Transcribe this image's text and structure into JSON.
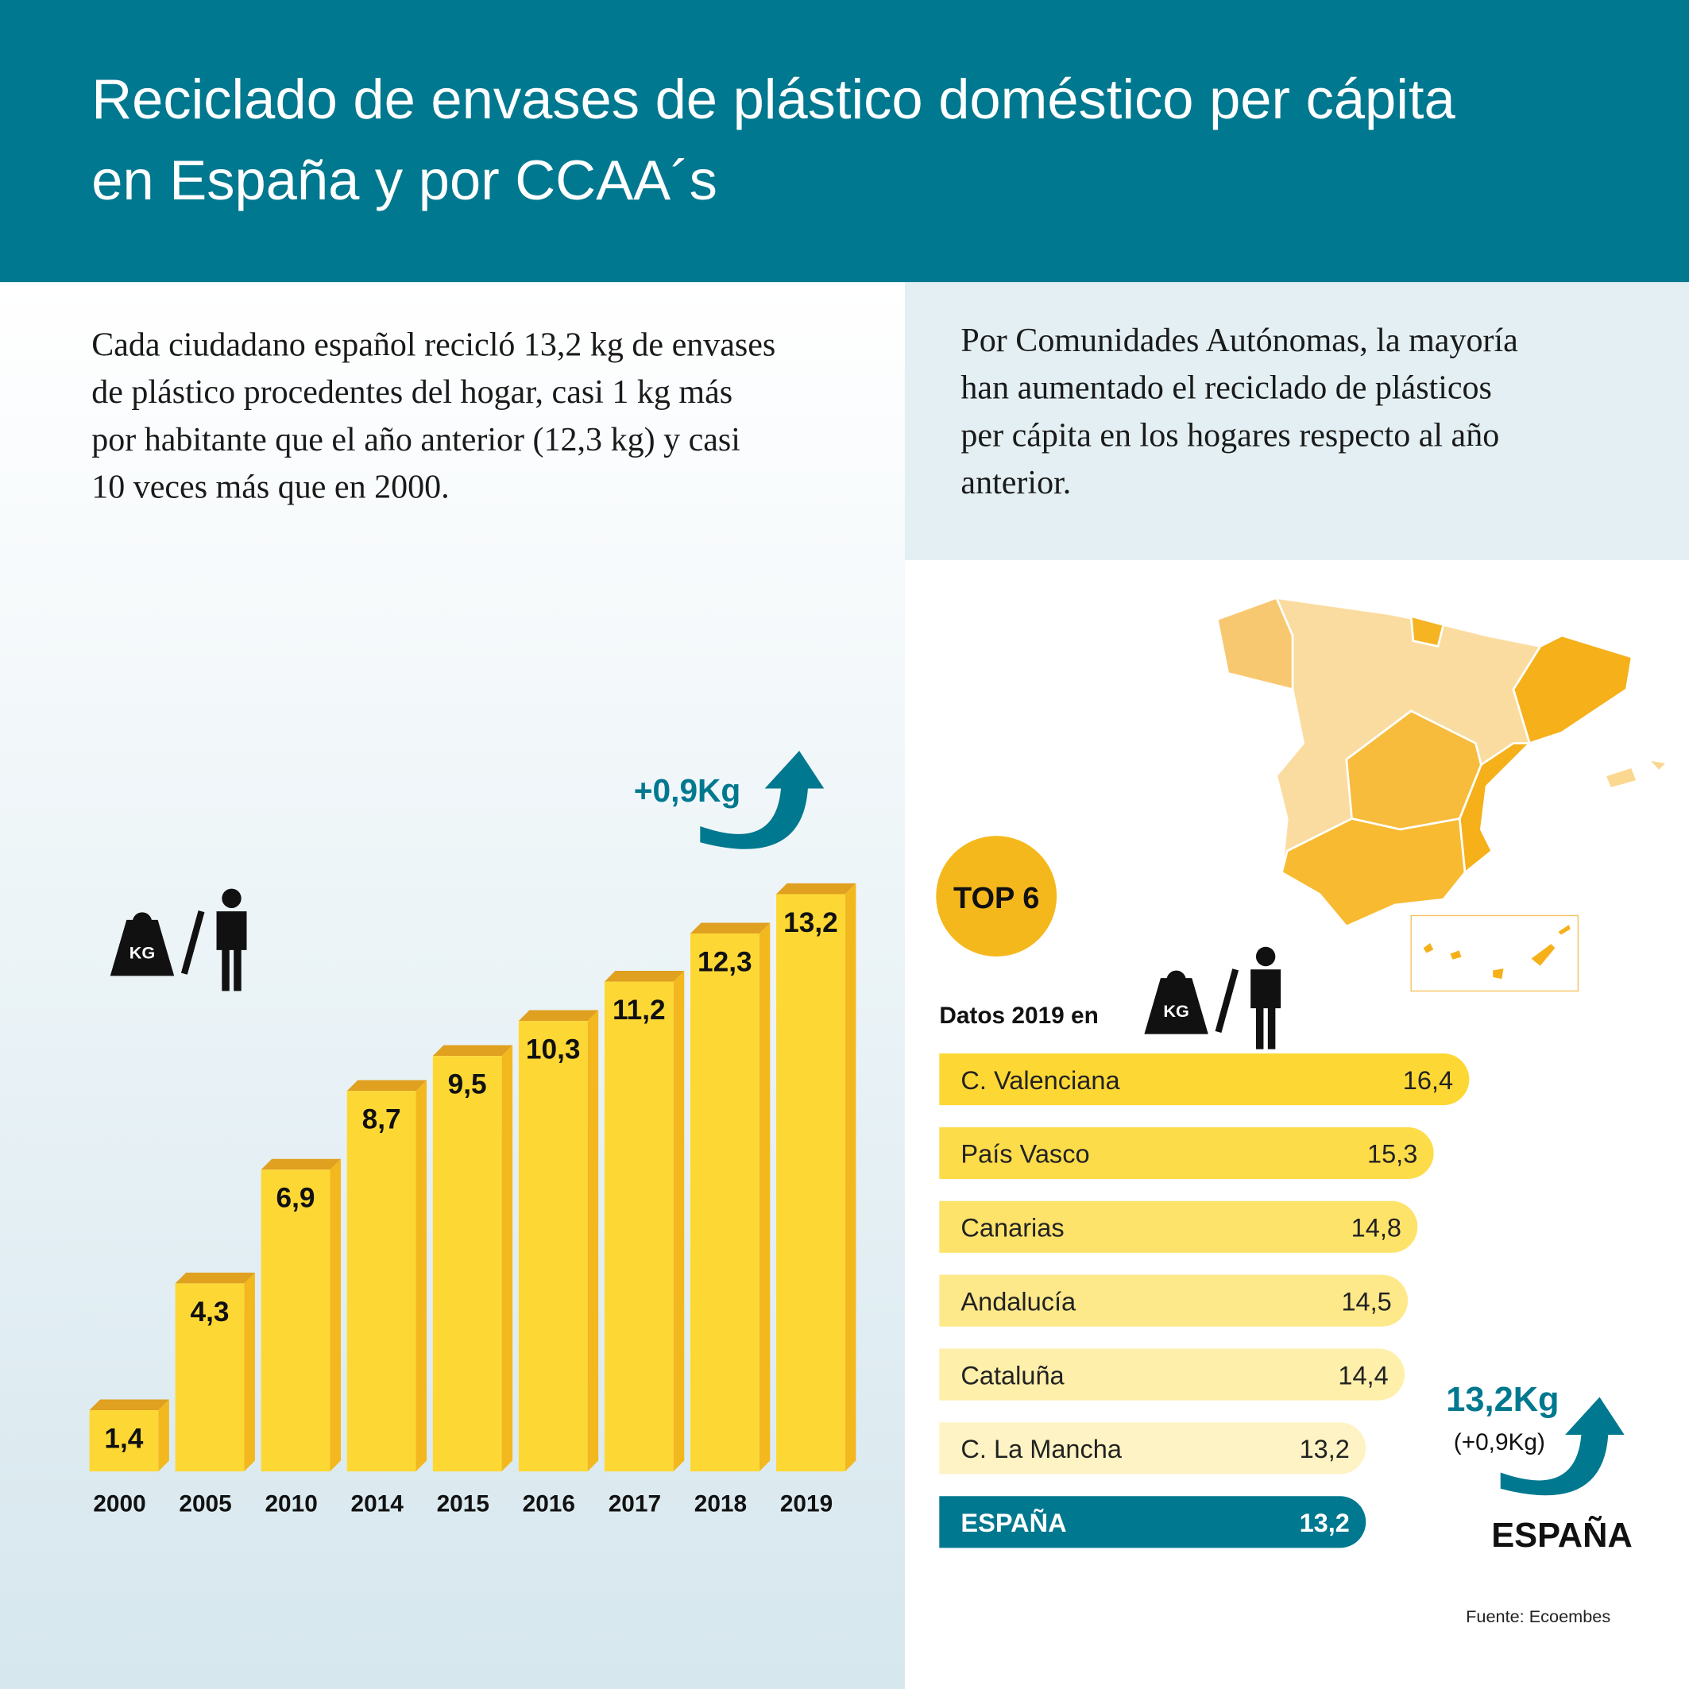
{
  "title": [
    "Reciclado de envases de plástico doméstico per cápita",
    "en España y por CCAA´s"
  ],
  "intro_left": [
    "Cada ciudadano español recicló 13,2 kg de envases",
    "de plástico procedentes del hogar,  casi 1 kg más",
    "por habitante que el año anterior (12,3 kg) y casi",
    "10  veces más que en 2000."
  ],
  "intro_right": [
    "Por Comunidades Autónomas, la mayoría",
    "han aumentado el reciclado de plásticos",
    "per cápita en los hogares respecto al año",
    "anterior."
  ],
  "icon_unit": "KG",
  "chart_data": [
    {
      "type": "bar",
      "annotation": "+0,9Kg",
      "color": "#fdd835",
      "categories": [
        "2000",
        "2005",
        "2010",
        "2014",
        "2015",
        "2016",
        "2017",
        "2018",
        "2019"
      ],
      "values": [
        1.4,
        4.3,
        6.9,
        8.7,
        9.5,
        10.3,
        11.2,
        12.3,
        13.2
      ],
      "value_labels": [
        "1,4",
        "4,3",
        "6,9",
        "8,7",
        "9,5",
        "10,3",
        "11,2",
        "12,3",
        "13,2"
      ]
    },
    {
      "type": "hbar",
      "badge": "TOP 6",
      "subtitle": "Datos 2019 en",
      "categories": [
        "C. Valenciana",
        "País Vasco",
        "Canarias",
        "Andalucía",
        "Cataluña",
        "C. La Mancha",
        "ESPAÑA"
      ],
      "values": [
        16.4,
        15.3,
        14.8,
        14.5,
        14.4,
        13.2,
        13.2
      ],
      "value_labels": [
        "16,4",
        "15,3",
        "14,8",
        "14,5",
        "14,4",
        "13,2",
        "13,2"
      ],
      "colors": [
        "#fdd835",
        "#fddc4a",
        "#fde36a",
        "#fee98a",
        "#feefaa",
        "#fef3c4",
        "#00788f"
      ],
      "annotation": {
        "value": "13,2Kg",
        "change": "(+0,9Kg)",
        "label": "ESPAÑA"
      }
    }
  ],
  "source": "Fuente: Ecoembes"
}
